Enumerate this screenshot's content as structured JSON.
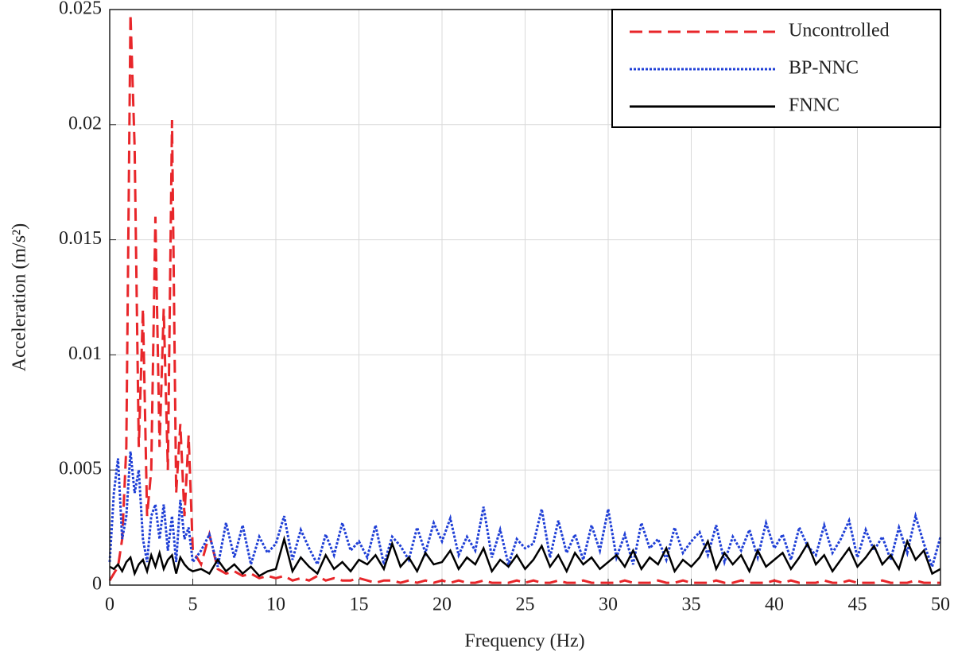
{
  "chart_data": {
    "type": "line",
    "xlabel": "Frequency (Hz)",
    "ylabel": "Acceleration (m/s²)",
    "xlim": [
      0,
      50
    ],
    "ylim": [
      0,
      0.025
    ],
    "xticks": [
      0,
      5,
      10,
      15,
      20,
      25,
      30,
      35,
      40,
      45,
      50
    ],
    "yticks": [
      0,
      0.005,
      0.01,
      0.015,
      0.02,
      0.025
    ],
    "grid": true,
    "legend": "upper right",
    "x": [
      0,
      0.25,
      0.5,
      0.75,
      1,
      1.25,
      1.5,
      1.75,
      2,
      2.25,
      2.5,
      2.75,
      3,
      3.25,
      3.5,
      3.75,
      4,
      4.25,
      4.5,
      4.75,
      5,
      5.5,
      6,
      6.5,
      7,
      7.5,
      8,
      8.5,
      9,
      9.5,
      10,
      10.5,
      11,
      11.5,
      12,
      12.5,
      13,
      13.5,
      14,
      14.5,
      15,
      15.5,
      16,
      16.5,
      17,
      17.5,
      18,
      18.5,
      19,
      19.5,
      20,
      20.5,
      21,
      21.5,
      22,
      22.5,
      23,
      23.5,
      24,
      24.5,
      25,
      25.5,
      26,
      26.5,
      27,
      27.5,
      28,
      28.5,
      29,
      29.5,
      30,
      30.5,
      31,
      31.5,
      32,
      32.5,
      33,
      33.5,
      34,
      34.5,
      35,
      35.5,
      36,
      36.5,
      37,
      37.5,
      38,
      38.5,
      39,
      39.5,
      40,
      40.5,
      41,
      41.5,
      42,
      42.5,
      43,
      43.5,
      44,
      44.5,
      45,
      45.5,
      46,
      46.5,
      47,
      47.5,
      48,
      48.5,
      49,
      49.5,
      50
    ],
    "series": [
      {
        "name": "Uncontrolled",
        "color": "#e8262a",
        "style": "dashed",
        "values": [
          0.0002,
          0.0005,
          0.0008,
          0.002,
          0.006,
          0.0248,
          0.019,
          0.006,
          0.012,
          0.003,
          0.005,
          0.016,
          0.006,
          0.012,
          0.005,
          0.0202,
          0.004,
          0.007,
          0.003,
          0.0065,
          0.0015,
          0.0009,
          0.0022,
          0.0007,
          0.0005,
          0.0006,
          0.0004,
          0.0005,
          0.0003,
          0.0004,
          0.0003,
          0.0004,
          0.0002,
          0.0003,
          0.0002,
          0.0004,
          0.0002,
          0.0003,
          0.0002,
          0.0002,
          0.0003,
          0.0002,
          0.0001,
          0.0002,
          0.0002,
          0.0001,
          0.0002,
          0.0001,
          0.0002,
          0.0001,
          0.0002,
          0.0001,
          0.0002,
          0.0001,
          0.0001,
          0.0002,
          0.0001,
          0.0001,
          0.0001,
          0.0002,
          0.0001,
          0.0002,
          0.0001,
          0.0001,
          0.0002,
          0.0001,
          0.0001,
          0.0002,
          0.0001,
          0.0001,
          0.0001,
          0.0001,
          0.0002,
          0.0001,
          0.0001,
          0.0001,
          0.0002,
          0.0001,
          0.0001,
          0.0002,
          0.0001,
          0.0001,
          0.0001,
          0.0002,
          0.0001,
          0.0001,
          0.0002,
          0.0001,
          0.0001,
          0.0001,
          0.0002,
          0.0001,
          0.0002,
          0.0001,
          0.0001,
          0.0001,
          0.0002,
          0.0001,
          0.0001,
          0.0002,
          0.0001,
          0.0001,
          0.0001,
          0.0002,
          0.0001,
          0.0001,
          0.0001,
          0.0002,
          0.0001,
          0.0001,
          0.0001
        ]
      },
      {
        "name": "BP-NNC",
        "color": "#1f3fd6",
        "style": "dotted",
        "values": [
          0.001,
          0.004,
          0.0055,
          0.002,
          0.003,
          0.0058,
          0.004,
          0.005,
          0.002,
          0.001,
          0.003,
          0.0035,
          0.002,
          0.0035,
          0.0015,
          0.003,
          0.001,
          0.0037,
          0.002,
          0.0025,
          0.001,
          0.0015,
          0.0022,
          0.0008,
          0.0027,
          0.0012,
          0.0026,
          0.0009,
          0.0021,
          0.0014,
          0.0018,
          0.003,
          0.0011,
          0.0024,
          0.0016,
          0.0009,
          0.0022,
          0.0013,
          0.0027,
          0.0015,
          0.0019,
          0.0012,
          0.0026,
          0.0009,
          0.0021,
          0.0017,
          0.0011,
          0.0025,
          0.0014,
          0.0027,
          0.0019,
          0.0029,
          0.0013,
          0.0021,
          0.0015,
          0.0034,
          0.0012,
          0.0024,
          0.0009,
          0.002,
          0.0016,
          0.0018,
          0.0033,
          0.0012,
          0.0028,
          0.0014,
          0.0022,
          0.0011,
          0.0026,
          0.0015,
          0.0033,
          0.0012,
          0.0022,
          0.0009,
          0.0027,
          0.0016,
          0.002,
          0.0011,
          0.0025,
          0.0014,
          0.0019,
          0.0023,
          0.0013,
          0.0026,
          0.001,
          0.0021,
          0.0015,
          0.0024,
          0.0012,
          0.0027,
          0.0016,
          0.0022,
          0.0011,
          0.0025,
          0.0017,
          0.0013,
          0.0026,
          0.0014,
          0.002,
          0.0028,
          0.0012,
          0.0024,
          0.0015,
          0.0021,
          0.0011,
          0.0025,
          0.0014,
          0.003,
          0.0018,
          0.0008,
          0.0021
        ]
      },
      {
        "name": "FNNC",
        "color": "#000000",
        "style": "solid",
        "values": [
          0.0008,
          0.0007,
          0.0009,
          0.0006,
          0.001,
          0.0012,
          0.0005,
          0.0009,
          0.0011,
          0.0006,
          0.0013,
          0.0008,
          0.0014,
          0.0007,
          0.0011,
          0.0013,
          0.0005,
          0.0012,
          0.0009,
          0.0007,
          0.0006,
          0.0007,
          0.0005,
          0.0011,
          0.0006,
          0.0009,
          0.0005,
          0.0008,
          0.0004,
          0.0006,
          0.0007,
          0.002,
          0.0006,
          0.0012,
          0.0008,
          0.0005,
          0.0013,
          0.0007,
          0.001,
          0.0006,
          0.0011,
          0.0009,
          0.0013,
          0.0007,
          0.0018,
          0.0008,
          0.0012,
          0.0006,
          0.0014,
          0.0009,
          0.001,
          0.0015,
          0.0007,
          0.0012,
          0.0009,
          0.0016,
          0.0006,
          0.0011,
          0.0008,
          0.0013,
          0.0007,
          0.0011,
          0.0017,
          0.0008,
          0.0013,
          0.0006,
          0.0014,
          0.0009,
          0.0012,
          0.0007,
          0.001,
          0.0013,
          0.0008,
          0.0015,
          0.0007,
          0.0012,
          0.0009,
          0.0016,
          0.0006,
          0.0011,
          0.0008,
          0.0012,
          0.0019,
          0.0007,
          0.0014,
          0.0009,
          0.0013,
          0.0006,
          0.0015,
          0.0008,
          0.0011,
          0.0014,
          0.0007,
          0.0012,
          0.0018,
          0.0009,
          0.0013,
          0.0006,
          0.0011,
          0.0016,
          0.0008,
          0.0012,
          0.0017,
          0.0009,
          0.0013,
          0.0007,
          0.0019,
          0.0011,
          0.0015,
          0.0005,
          0.0007
        ]
      }
    ]
  }
}
